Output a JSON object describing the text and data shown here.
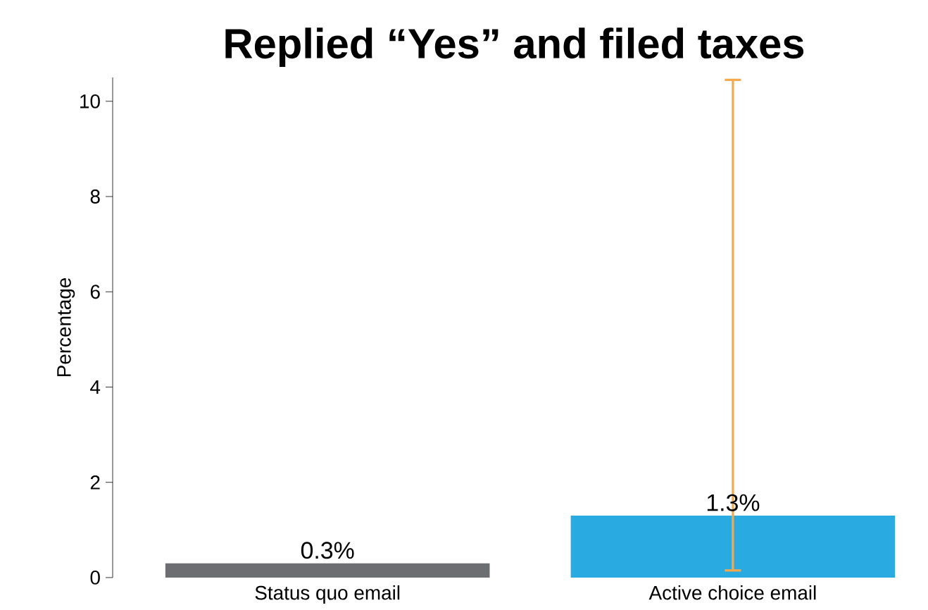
{
  "chart_data": {
    "type": "bar",
    "title": "Replied “Yes” and filed taxes",
    "ylabel": "Percentage",
    "categories": [
      "Status quo email",
      "Active choice email"
    ],
    "values": [
      0.3,
      1.3
    ],
    "colors": [
      "#6d6e71",
      "#29abe2"
    ],
    "errors": [
      null,
      [
        0.15,
        10.45
      ]
    ],
    "value_labels": [
      "0.3%",
      "1.3%"
    ],
    "ylim": [
      0,
      10.5
    ],
    "yticks": [
      0,
      2,
      4,
      6,
      8,
      10
    ],
    "legend": false
  }
}
